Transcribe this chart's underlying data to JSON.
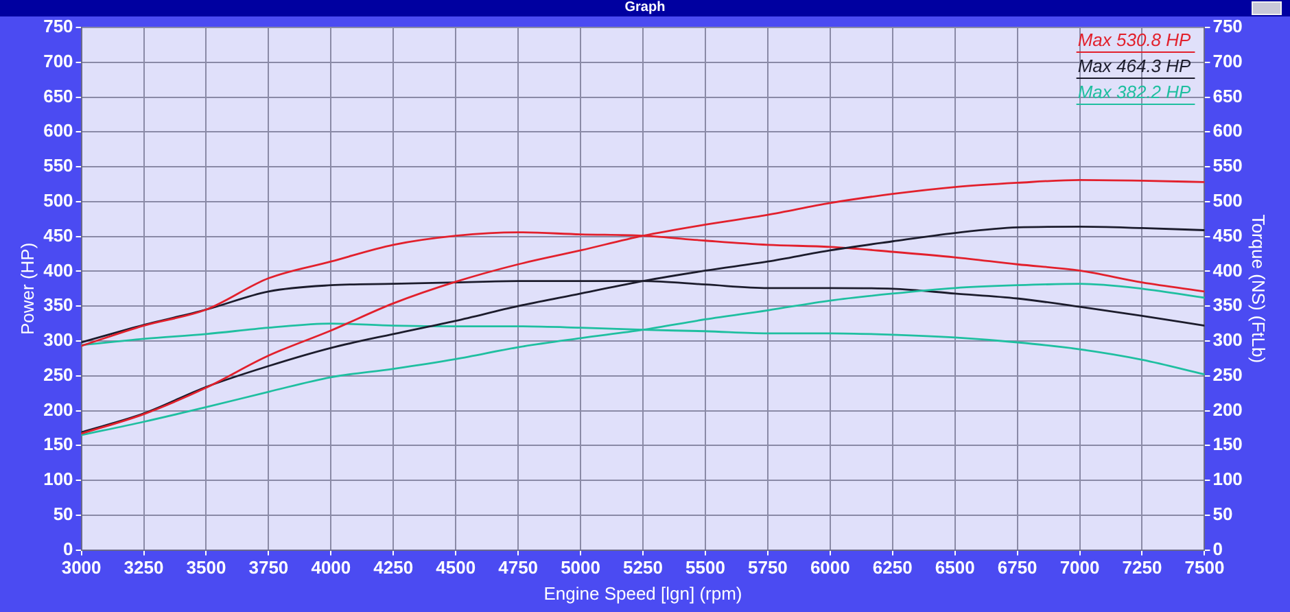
{
  "chart_data": {
    "type": "line",
    "title": "Graph",
    "xlabel": "Engine Speed [lgn] (rpm)",
    "ylabel": "Power (HP)",
    "y2label": "Torque (NS) (FtLb)",
    "x": [
      3000,
      3250,
      3500,
      3750,
      4000,
      4250,
      4500,
      4750,
      5000,
      5250,
      5500,
      5750,
      6000,
      6250,
      6500,
      6750,
      7000,
      7250,
      7500
    ],
    "series": [
      {
        "name": "Max 530.8 HP",
        "color": "#e2202c",
        "values": [
          167,
          195,
          233,
          279,
          315,
          354,
          385,
          410,
          430,
          451,
          467,
          481,
          498,
          511,
          521,
          527,
          531,
          530,
          528
        ]
      },
      {
        "name": "Max 464.3 HP",
        "color": "#1c1c2c",
        "values": [
          169,
          196,
          234,
          264,
          290,
          310,
          329,
          350,
          368,
          386,
          401,
          414,
          430,
          443,
          455,
          463,
          464,
          462,
          459
        ]
      },
      {
        "name": "Max 382.2 HP",
        "color": "#1fbfa0",
        "values": [
          165,
          184,
          205,
          227,
          248,
          260,
          274,
          291,
          304,
          316,
          331,
          344,
          358,
          368,
          376,
          380,
          382,
          375,
          362
        ]
      },
      {
        "color": "#e2202c",
        "values": [
          293,
          322,
          345,
          390,
          414,
          438,
          451,
          456,
          453,
          451,
          444,
          438,
          435,
          428,
          420,
          410,
          401,
          384,
          371
        ]
      },
      {
        "color": "#1c1c2c",
        "values": [
          298,
          323,
          345,
          371,
          380,
          382,
          384,
          386,
          386,
          386,
          381,
          376,
          376,
          375,
          368,
          361,
          349,
          336,
          322
        ]
      },
      {
        "color": "#1fbfa0",
        "values": [
          294,
          303,
          310,
          319,
          325,
          322,
          321,
          321,
          319,
          316,
          314,
          311,
          311,
          309,
          305,
          298,
          288,
          273,
          252
        ]
      }
    ],
    "xlim": [
      3000,
      7500
    ],
    "xticks": [
      3000,
      3250,
      3500,
      3750,
      4000,
      4250,
      4500,
      4750,
      5000,
      5250,
      5500,
      5750,
      6000,
      6250,
      6500,
      6750,
      7000,
      7250,
      7500
    ],
    "ylim": [
      0,
      750
    ],
    "yticks": [
      0,
      50,
      100,
      150,
      200,
      250,
      300,
      350,
      400,
      450,
      500,
      550,
      600,
      650,
      700,
      750
    ],
    "y2lim": [
      0,
      750
    ],
    "y2ticks": [
      0,
      50,
      100,
      150,
      200,
      250,
      300,
      350,
      400,
      450,
      500,
      550,
      600,
      650,
      700,
      750
    ],
    "grid": true,
    "legend": "top right",
    "marker": "none"
  }
}
